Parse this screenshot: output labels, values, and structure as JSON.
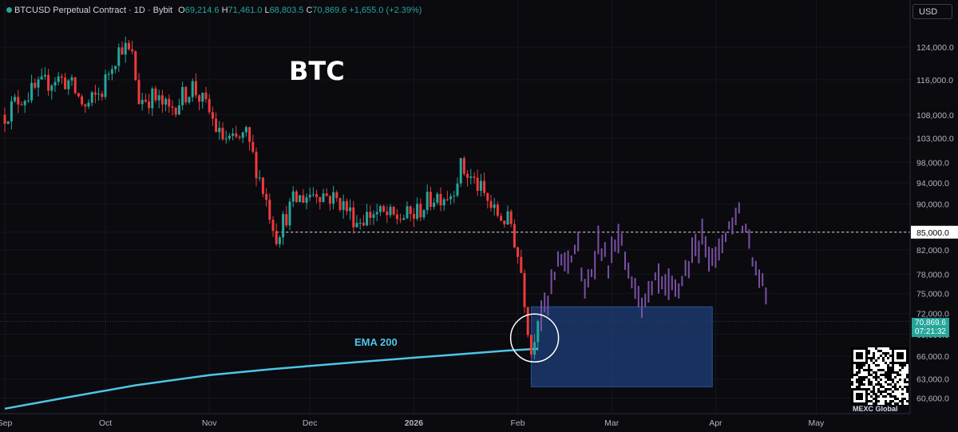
{
  "header": {
    "symbol": "BTCUSD Perpetual Contract · 1D · Bybit",
    "open_label": "O",
    "open": "69,214.6",
    "high_label": "H",
    "high": "71,461.0",
    "low_label": "L",
    "low": "68,803.5",
    "close_label": "C",
    "close": "70,869.6",
    "change": "+1,655.0 (+2.39%)"
  },
  "currency_button": "USD",
  "title": "BTC",
  "ema_label": "EMA 200",
  "price_box": {
    "price": "70,869.6",
    "countdown": "07:21:32"
  },
  "watermark": "MEXC Global",
  "colors": {
    "up": "#26a69a",
    "down": "#ef3b3b",
    "ema": "#4ec5e6",
    "projection": "#7b4fa3",
    "zone": "#1e3f7a",
    "background": "#0a0a0f"
  },
  "chart_data": {
    "type": "candlestick",
    "y_scale": "log",
    "ylim": [
      58700,
      130000
    ],
    "y_ticks": [
      60600,
      63000,
      66000,
      69000,
      72000,
      75000,
      78000,
      82000,
      85000,
      90000,
      94000,
      98000,
      103000,
      108000,
      116000,
      124000
    ],
    "y_tick_labels": [
      "60,600.0",
      "63,000.0",
      "66,000.0",
      "69,000.0",
      "72,000.0",
      "75,000.0",
      "78,000.0",
      "82,000.0",
      "85,000.0",
      "90,000.0",
      "94,000.0",
      "98,000.0",
      "103,000.0",
      "108,000.0",
      "116,000.0",
      "124,000.0"
    ],
    "x_labels": [
      {
        "label": "Sep",
        "date": "2025-09-01"
      },
      {
        "label": "Oct",
        "date": "2025-10-01"
      },
      {
        "label": "Nov",
        "date": "2025-11-01"
      },
      {
        "label": "Dec",
        "date": "2025-12-01"
      },
      {
        "label": "2026",
        "date": "2026-01-01",
        "bold": true
      },
      {
        "label": "Feb",
        "date": "2026-02-01"
      },
      {
        "label": "Mar",
        "date": "2026-03-01"
      },
      {
        "label": "Apr",
        "date": "2026-04-01"
      },
      {
        "label": "May",
        "date": "2026-05-01"
      }
    ],
    "start_date": "2025-09-01",
    "dashed_level": {
      "price": 85000,
      "label": "85,000.0",
      "from_date": "2025-11-21"
    },
    "current_price_line": 70869.6,
    "zone": {
      "from_date": "2026-02-05",
      "to_date": "2026-03-31",
      "low": 62000,
      "high": 73000
    },
    "circle": {
      "date": "2026-02-06",
      "price": 68500
    },
    "ema200": [
      [
        "2025-09-01",
        59300
      ],
      [
        "2025-09-20",
        60700
      ],
      [
        "2025-10-10",
        62200
      ],
      [
        "2025-11-01",
        63500
      ],
      [
        "2025-11-20",
        64300
      ],
      [
        "2025-12-15",
        65200
      ],
      [
        "2026-01-10",
        66100
      ],
      [
        "2026-01-30",
        66800
      ],
      [
        "2026-02-07",
        67000
      ]
    ],
    "price_path": [
      [
        "2025-09-01",
        108000
      ],
      [
        "2025-09-05",
        111500
      ],
      [
        "2025-09-10",
        113500
      ],
      [
        "2025-09-16",
        116500
      ],
      [
        "2025-09-20",
        115500
      ],
      [
        "2025-09-25",
        109500
      ],
      [
        "2025-09-30",
        113500
      ],
      [
        "2025-10-03",
        120500
      ],
      [
        "2025-10-06",
        124500
      ],
      [
        "2025-10-09",
        121500
      ],
      [
        "2025-10-11",
        111500
      ],
      [
        "2025-10-15",
        112000
      ],
      [
        "2025-10-20",
        109000
      ],
      [
        "2025-10-27",
        114500
      ],
      [
        "2025-11-01",
        108500
      ],
      [
        "2025-11-04",
        103500
      ],
      [
        "2025-11-08",
        102000
      ],
      [
        "2025-11-12",
        103500
      ],
      [
        "2025-11-16",
        95000
      ],
      [
        "2025-11-21",
        84500
      ],
      [
        "2025-11-26",
        90500
      ],
      [
        "2025-12-03",
        92500
      ],
      [
        "2025-12-10",
        90500
      ],
      [
        "2025-12-15",
        87000
      ],
      [
        "2025-12-20",
        88500
      ],
      [
        "2025-12-26",
        87500
      ],
      [
        "2026-01-01",
        88000
      ],
      [
        "2026-01-07",
        91500
      ],
      [
        "2026-01-12",
        92000
      ],
      [
        "2026-01-15",
        97000
      ],
      [
        "2026-01-20",
        93500
      ],
      [
        "2026-01-25",
        88500
      ],
      [
        "2026-01-30",
        86500
      ],
      [
        "2026-02-02",
        78500
      ],
      [
        "2026-02-05",
        66500
      ],
      [
        "2026-02-06",
        69200
      ],
      [
        "2026-02-07",
        70869.6
      ]
    ],
    "projection_path": [
      [
        "2026-02-08",
        72000
      ],
      [
        "2026-02-10",
        74000
      ],
      [
        "2026-02-13",
        79500
      ],
      [
        "2026-02-16",
        81000
      ],
      [
        "2026-02-19",
        82500
      ],
      [
        "2026-02-21",
        74000
      ],
      [
        "2026-02-25",
        83500
      ],
      [
        "2026-02-28",
        79000
      ],
      [
        "2026-03-03",
        84000
      ],
      [
        "2026-03-07",
        76500
      ],
      [
        "2026-03-11",
        74000
      ],
      [
        "2026-03-15",
        77000
      ],
      [
        "2026-03-19",
        75000
      ],
      [
        "2026-03-24",
        79000
      ],
      [
        "2026-03-28",
        84500
      ],
      [
        "2026-04-01",
        80500
      ],
      [
        "2026-04-05",
        86500
      ],
      [
        "2026-04-08",
        88500
      ],
      [
        "2026-04-11",
        83500
      ],
      [
        "2026-04-14",
        77000
      ],
      [
        "2026-04-16",
        76000
      ]
    ]
  }
}
